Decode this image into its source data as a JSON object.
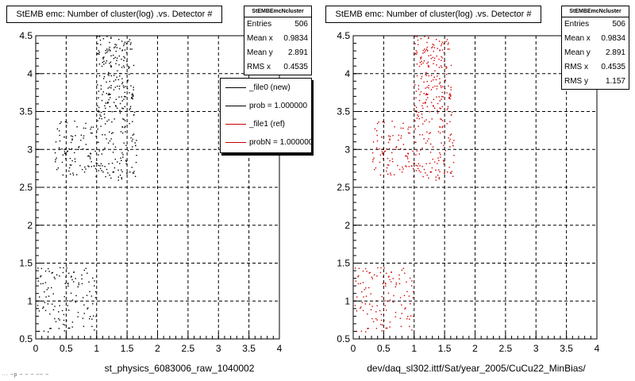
{
  "colors": {
    "left_points": "#000000",
    "right_points": "#d00000",
    "grid": "#000000"
  },
  "stats_header": "StEMBEmcNcluster",
  "footer_note": "··· ~p ~ ~ ~ ~~ ~",
  "legend": {
    "entries": [
      {
        "label": "_file0 (new)",
        "color": "#000000"
      },
      {
        "label": "prob = 1.000000",
        "color": "#000000"
      },
      {
        "label": "_file1 (ref)",
        "color": "#cc0000"
      },
      {
        "label": "probN = 1.000000",
        "color": "#cc0000"
      }
    ]
  },
  "panels": [
    {
      "title": "StEMB emc: Number of cluster(log) .vs. Detector #",
      "xcaption": "st_physics_6083006_raw_1040002",
      "stats": [
        {
          "label": "Entries",
          "value": "506"
        },
        {
          "label": "Mean x",
          "value": "0.9834"
        },
        {
          "label": "Mean y",
          "value": "2.891"
        },
        {
          "label": "RMS x",
          "value": "0.4535"
        }
      ]
    },
    {
      "title": "StEMB emc: Number of cluster(log) .vs. Detector #",
      "xcaption": "dev/daq_sl302.ittf/Sat/year_2005/CuCu22_MinBias/",
      "stats": [
        {
          "label": "Entries",
          "value": "506"
        },
        {
          "label": "Mean x",
          "value": "0.9834"
        },
        {
          "label": "Mean y",
          "value": "2.891"
        },
        {
          "label": "RMS x",
          "value": "0.4535"
        },
        {
          "label": "RMS y",
          "value": "1.157"
        }
      ]
    }
  ],
  "chart_data": [
    {
      "type": "scatter",
      "title": "StEMB emc: Number of cluster(log) .vs. Detector #",
      "xlabel": "st_physics_6083006_raw_1040002",
      "ylabel": "",
      "xlim": [
        0,
        4
      ],
      "ylim": [
        0.5,
        4.5
      ],
      "xticks": [
        "0",
        "0.5",
        "1",
        "1.5",
        "2",
        "2.5",
        "3",
        "3.5",
        "4"
      ],
      "yticks": [
        "0.5",
        "1",
        "1.5",
        "2",
        "2.5",
        "3",
        "3.5",
        "4",
        "4.5"
      ],
      "grid": true,
      "marker_color": "#000000",
      "entries": 506,
      "clusters": [
        {
          "x_range": [
            0.02,
            1.0
          ],
          "y_range": [
            0.6,
            1.45
          ],
          "count": 120
        },
        {
          "x_range": [
            0.3,
            1.0
          ],
          "y_range": [
            2.65,
            3.4
          ],
          "count": 95
        },
        {
          "x_range": [
            1.0,
            1.65
          ],
          "y_range": [
            2.6,
            3.55
          ],
          "count": 120
        },
        {
          "x_range": [
            1.0,
            1.6
          ],
          "y_range": [
            3.55,
            4.5
          ],
          "count": 171
        }
      ]
    },
    {
      "type": "scatter",
      "title": "StEMB emc: Number of cluster(log) .vs. Detector #",
      "xlabel": "dev/daq_sl302.ittf/Sat/year_2005/CuCu22_MinBias/",
      "ylabel": "",
      "xlim": [
        0,
        4
      ],
      "ylim": [
        0.5,
        4.5
      ],
      "xticks": [
        "0",
        "0.5",
        "1",
        "1.5",
        "2",
        "2.5",
        "3",
        "3.5",
        "4"
      ],
      "yticks": [
        "0.5",
        "1",
        "1.5",
        "2",
        "2.5",
        "3",
        "3.5",
        "4",
        "4.5"
      ],
      "grid": true,
      "marker_color": "#d00000",
      "entries": 506,
      "clusters": [
        {
          "x_range": [
            0.02,
            1.0
          ],
          "y_range": [
            0.6,
            1.45
          ],
          "count": 120
        },
        {
          "x_range": [
            0.3,
            1.0
          ],
          "y_range": [
            2.65,
            3.4
          ],
          "count": 95
        },
        {
          "x_range": [
            1.0,
            1.65
          ],
          "y_range": [
            2.6,
            3.55
          ],
          "count": 120
        },
        {
          "x_range": [
            1.0,
            1.6
          ],
          "y_range": [
            3.55,
            4.5
          ],
          "count": 171
        }
      ]
    }
  ]
}
